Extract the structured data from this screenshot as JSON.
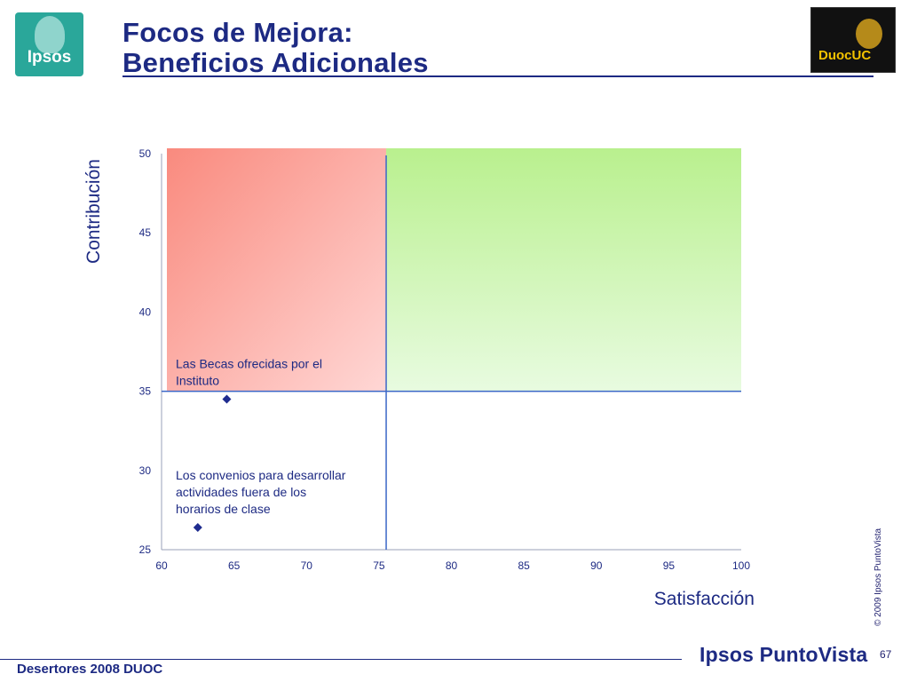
{
  "header": {
    "title_line1": "Focos de Mejora:",
    "title_line2": "Beneficios Adicionales",
    "left_logo_text": "Ipsos",
    "right_logo_text": "DuocUC"
  },
  "footer": {
    "left_text": "Desertores 2008 DUOC",
    "brand_text": "Ipsos PuntoVista",
    "copyright": "© 2009 Ipsos PuntoVista",
    "page_number": "67"
  },
  "colors": {
    "title": "#1d2a83",
    "red_quadrant": "#f98a7e",
    "green_quadrant": "#b9f08e",
    "reference_line": "#3b67c7",
    "marker": "#1f2c8f"
  },
  "chart_data": {
    "type": "scatter",
    "xlabel": "Satisfacción",
    "ylabel": "Contribución",
    "xlim": [
      60,
      100
    ],
    "ylim": [
      25,
      50
    ],
    "x_ticks": [
      60,
      65,
      70,
      75,
      80,
      85,
      90,
      95,
      100
    ],
    "y_ticks": [
      25,
      30,
      35,
      40,
      45,
      50
    ],
    "reference_x": 75.5,
    "reference_y": 35,
    "points": [
      {
        "label_lines": [
          "Las Becas ofrecidas por el",
          "Instituto"
        ],
        "x": 64.5,
        "y": 34.5
      },
      {
        "label_lines": [
          "Los convenios para desarrollar",
          "actividades fuera de los",
          "horarios de clase"
        ],
        "x": 62.5,
        "y": 26.4
      }
    ],
    "grid": false,
    "legend": "none"
  }
}
